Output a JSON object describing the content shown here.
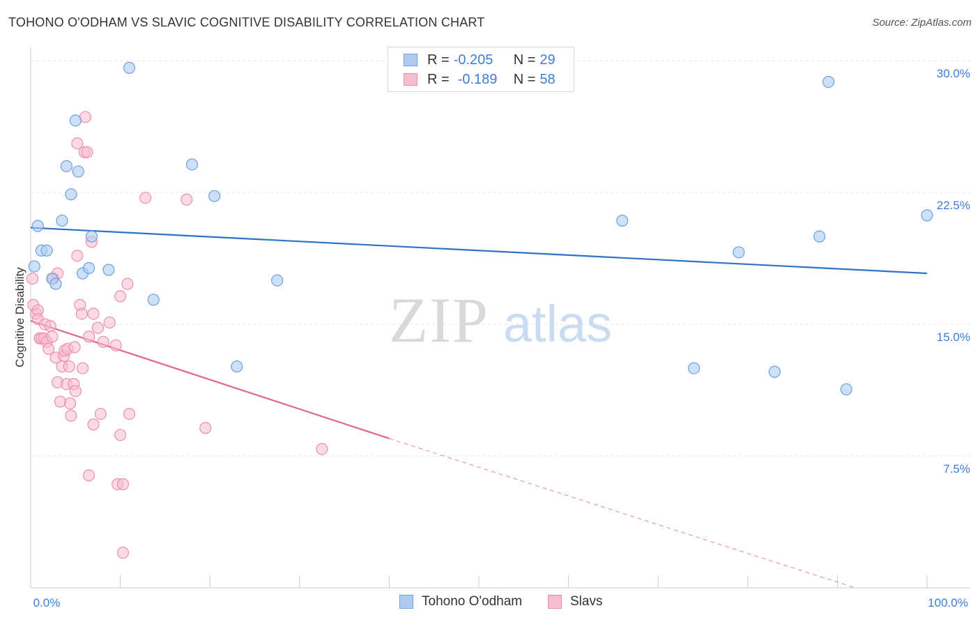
{
  "title": "TOHONO O'ODHAM VS SLAVIC COGNITIVE DISABILITY CORRELATION CHART",
  "source": "Source: ZipAtlas.com",
  "watermark": {
    "zip": "ZIP",
    "atlas": "atlas"
  },
  "legend_top": {
    "rows": [
      {
        "r_label": "R =",
        "r_value": "-0.205",
        "n_label": "N =",
        "n_value": "29"
      },
      {
        "r_label": "R =",
        "r_value": "-0.189",
        "n_label": "N =",
        "n_value": "58"
      }
    ]
  },
  "colors": {
    "blue_fill": "#aecbf2",
    "blue_stroke": "#6f9fdc",
    "blue_line": "#2f72c8",
    "pink_fill": "#f7bcd0",
    "pink_stroke": "#eb8fae",
    "pink_line": "#e0648f",
    "tick_text": "#3b7dd8",
    "grid": "#e4e4e4"
  },
  "chart_data": {
    "type": "scatter",
    "title": "TOHONO O'ODHAM VS SLAVIC COGNITIVE DISABILITY CORRELATION CHART",
    "xlabel": "",
    "ylabel": "Cognitive Disability",
    "xlim": [
      0,
      100
    ],
    "ylim": [
      0,
      31
    ],
    "x_tick_labels": [
      "0.0%",
      "100.0%"
    ],
    "y_ticks": [
      7.5,
      15.0,
      22.5,
      30.0
    ],
    "y_tick_labels": [
      "7.5%",
      "15.0%",
      "22.5%",
      "30.0%"
    ],
    "grid": true,
    "legend_position": "bottom-center",
    "series": [
      {
        "name": "Tohono O'odham",
        "color": "blue",
        "r": -0.205,
        "n": 29,
        "trend": {
          "x": [
            0,
            100
          ],
          "y": [
            20.5,
            17.9
          ],
          "dashed_after": null
        },
        "points": [
          {
            "x": 0.4,
            "y": 18.3
          },
          {
            "x": 0.8,
            "y": 20.6
          },
          {
            "x": 1.2,
            "y": 19.2
          },
          {
            "x": 1.8,
            "y": 19.2
          },
          {
            "x": 2.4,
            "y": 17.6
          },
          {
            "x": 2.8,
            "y": 17.3
          },
          {
            "x": 3.5,
            "y": 20.9
          },
          {
            "x": 4.0,
            "y": 24.0
          },
          {
            "x": 4.5,
            "y": 22.4
          },
          {
            "x": 5.0,
            "y": 26.6
          },
          {
            "x": 5.3,
            "y": 23.7
          },
          {
            "x": 5.8,
            "y": 17.9
          },
          {
            "x": 6.5,
            "y": 18.2
          },
          {
            "x": 6.8,
            "y": 20.0
          },
          {
            "x": 8.7,
            "y": 18.1
          },
          {
            "x": 11.0,
            "y": 29.6
          },
          {
            "x": 13.7,
            "y": 16.4
          },
          {
            "x": 18.0,
            "y": 24.1
          },
          {
            "x": 20.5,
            "y": 22.3
          },
          {
            "x": 23.0,
            "y": 12.6
          },
          {
            "x": 27.5,
            "y": 17.5
          },
          {
            "x": 66.0,
            "y": 20.9
          },
          {
            "x": 74.0,
            "y": 12.5
          },
          {
            "x": 79.0,
            "y": 19.1
          },
          {
            "x": 83.0,
            "y": 12.3
          },
          {
            "x": 88.0,
            "y": 20.0
          },
          {
            "x": 89.0,
            "y": 28.8
          },
          {
            "x": 91.0,
            "y": 11.3
          },
          {
            "x": 100.0,
            "y": 21.2
          }
        ]
      },
      {
        "name": "Slavs",
        "color": "pink",
        "r": -0.189,
        "n": 58,
        "trend": {
          "x": [
            0,
            40
          ],
          "y": [
            15.2,
            8.5
          ],
          "dashed_to": {
            "x": 92,
            "y": 0
          }
        },
        "points": [
          {
            "x": 0.2,
            "y": 17.6
          },
          {
            "x": 0.3,
            "y": 16.1
          },
          {
            "x": 0.6,
            "y": 15.6
          },
          {
            "x": 0.8,
            "y": 15.8
          },
          {
            "x": 0.8,
            "y": 15.3
          },
          {
            "x": 1.0,
            "y": 14.2
          },
          {
            "x": 1.2,
            "y": 14.2
          },
          {
            "x": 1.5,
            "y": 14.2
          },
          {
            "x": 1.6,
            "y": 15.0
          },
          {
            "x": 1.8,
            "y": 14.0
          },
          {
            "x": 2.0,
            "y": 13.6
          },
          {
            "x": 2.2,
            "y": 14.9
          },
          {
            "x": 2.4,
            "y": 14.3
          },
          {
            "x": 2.5,
            "y": 17.6
          },
          {
            "x": 2.8,
            "y": 13.1
          },
          {
            "x": 3.0,
            "y": 17.9
          },
          {
            "x": 3.0,
            "y": 11.7
          },
          {
            "x": 3.3,
            "y": 10.6
          },
          {
            "x": 3.5,
            "y": 12.6
          },
          {
            "x": 3.7,
            "y": 13.2
          },
          {
            "x": 3.8,
            "y": 13.5
          },
          {
            "x": 4.0,
            "y": 11.6
          },
          {
            "x": 4.1,
            "y": 13.6
          },
          {
            "x": 4.3,
            "y": 12.6
          },
          {
            "x": 4.4,
            "y": 10.5
          },
          {
            "x": 4.5,
            "y": 9.8
          },
          {
            "x": 4.8,
            "y": 11.6
          },
          {
            "x": 4.9,
            "y": 13.7
          },
          {
            "x": 5.0,
            "y": 11.2
          },
          {
            "x": 5.2,
            "y": 18.9
          },
          {
            "x": 5.2,
            "y": 25.3
          },
          {
            "x": 5.5,
            "y": 16.1
          },
          {
            "x": 5.7,
            "y": 15.6
          },
          {
            "x": 5.8,
            "y": 12.5
          },
          {
            "x": 6.0,
            "y": 24.8
          },
          {
            "x": 6.1,
            "y": 26.8
          },
          {
            "x": 6.3,
            "y": 24.8
          },
          {
            "x": 6.5,
            "y": 14.3
          },
          {
            "x": 6.5,
            "y": 6.4
          },
          {
            "x": 6.8,
            "y": 19.7
          },
          {
            "x": 7.0,
            "y": 15.6
          },
          {
            "x": 7.0,
            "y": 9.3
          },
          {
            "x": 7.5,
            "y": 14.8
          },
          {
            "x": 7.8,
            "y": 9.9
          },
          {
            "x": 8.8,
            "y": 15.1
          },
          {
            "x": 9.5,
            "y": 13.8
          },
          {
            "x": 9.7,
            "y": 5.9
          },
          {
            "x": 10.0,
            "y": 16.6
          },
          {
            "x": 10.0,
            "y": 8.7
          },
          {
            "x": 10.3,
            "y": 5.9
          },
          {
            "x": 10.3,
            "y": 2.0
          },
          {
            "x": 10.8,
            "y": 17.3
          },
          {
            "x": 11.0,
            "y": 9.9
          },
          {
            "x": 12.8,
            "y": 22.2
          },
          {
            "x": 17.4,
            "y": 22.1
          },
          {
            "x": 19.5,
            "y": 9.1
          },
          {
            "x": 32.5,
            "y": 7.9
          },
          {
            "x": 8.1,
            "y": 14.0
          }
        ]
      }
    ]
  },
  "bottom_legend": {
    "items": [
      "Tohono O'odham",
      "Slavs"
    ]
  }
}
